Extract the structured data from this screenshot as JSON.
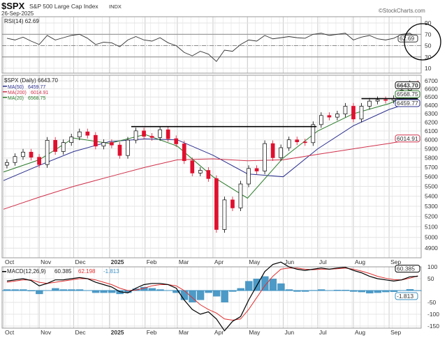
{
  "header": {
    "symbol": "$SPX",
    "name": "S&P 500 Large Cap Index",
    "exchange": "INDX",
    "date": "26-Sep-2025",
    "watermark": "©StockCharts.com"
  },
  "colors": {
    "up": "#000000",
    "down": "#e0102f",
    "ma50": "#2b2f8e",
    "ma200": "#d0304a",
    "ma20": "#2a7a2a",
    "macd": "#000000",
    "signal": "#e03030",
    "histogram": "#3a8fc0",
    "rsi": "#333333"
  },
  "chart_data": [
    {
      "type": "line",
      "title": "RSI(14) 62.69",
      "yticks": [
        90,
        70,
        50,
        30,
        10
      ],
      "ylim": [
        0,
        100
      ],
      "bands": [
        30,
        50,
        70
      ],
      "last_value": "62.69",
      "annotation": "circle around latest RSI value",
      "series": [
        {
          "name": "RSI(14)",
          "values": [
            63,
            60,
            65,
            58,
            52,
            68,
            60,
            64,
            68,
            70,
            63,
            52,
            56,
            55,
            48,
            60,
            66,
            60,
            58,
            64,
            55,
            50,
            38,
            32,
            40,
            35,
            22,
            42,
            40,
            52,
            60,
            58,
            68,
            62,
            64,
            66,
            64,
            63,
            70,
            72,
            68,
            70,
            72,
            60,
            65,
            68,
            62,
            60,
            63,
            70,
            72,
            62.69
          ]
        }
      ]
    },
    {
      "type": "candlestick",
      "title": "$SPX (Daily) 6643.70",
      "scale": "log",
      "ylim": [
        4800,
        6750
      ],
      "yticks": [
        6700,
        6600,
        6500,
        6400,
        6300,
        6200,
        6100,
        6000,
        5900,
        5800,
        5700,
        5600,
        5500,
        5400,
        5300,
        5200,
        5100,
        5000,
        4900
      ],
      "xticks": [
        "Oct",
        "Nov",
        "Dec",
        "2025",
        "Feb",
        "Mar",
        "Apr",
        "May",
        "Jun",
        "Jul",
        "Aug",
        "Sep"
      ],
      "xtick_dates": [
        "2024-10-01",
        "2024-11-01",
        "2024-12-01",
        "2025-01-01",
        "2025-02-01",
        "2025-03-01",
        "2025-04-01",
        "2025-05-01",
        "2025-06-01",
        "2025-07-01",
        "2025-08-01",
        "2025-09-01"
      ],
      "dates": [
        "2024-10-04",
        "2024-10-11",
        "2024-10-18",
        "2024-10-25",
        "2024-11-01",
        "2024-11-08",
        "2024-11-15",
        "2024-11-22",
        "2024-11-29",
        "2024-12-06",
        "2024-12-13",
        "2024-12-20",
        "2024-12-27",
        "2025-01-03",
        "2025-01-10",
        "2025-01-17",
        "2025-01-24",
        "2025-01-31",
        "2025-02-07",
        "2025-02-14",
        "2025-02-21",
        "2025-02-28",
        "2025-03-07",
        "2025-03-14",
        "2025-03-21",
        "2025-03-28",
        "2025-04-04",
        "2025-04-11",
        "2025-04-18",
        "2025-04-25",
        "2025-05-02",
        "2025-05-09",
        "2025-05-16",
        "2025-05-23",
        "2025-05-30",
        "2025-06-06",
        "2025-06-13",
        "2025-06-20",
        "2025-06-27",
        "2025-07-04",
        "2025-07-11",
        "2025-07-18",
        "2025-07-25",
        "2025-08-01",
        "2025-08-08",
        "2025-08-15",
        "2025-08-22",
        "2025-08-29",
        "2025-09-05",
        "2025-09-12",
        "2025-09-19",
        "2025-09-26"
      ],
      "close": [
        5751,
        5815,
        5864,
        5808,
        5729,
        5995,
        5870,
        5969,
        6032,
        6090,
        6051,
        5930,
        5970,
        5942,
        5827,
        5997,
        6101,
        6040,
        6026,
        6114,
        6013,
        5955,
        5770,
        5639,
        5667,
        5581,
        5074,
        5363,
        5283,
        5525,
        5687,
        5660,
        5958,
        5803,
        5912,
        6000,
        5977,
        5968,
        6173,
        6279,
        6260,
        6297,
        6389,
        6238,
        6389,
        6450,
        6467,
        6460,
        6482,
        6584,
        6664,
        6643.7
      ],
      "last_value": "6643.70",
      "moving_averages": [
        {
          "name": "MA(50)",
          "last": "6459.77",
          "color_key": "ma50",
          "dates": [
            "2024-10-01",
            "2024-11-01",
            "2024-12-01",
            "2025-01-01",
            "2025-02-01",
            "2025-03-01",
            "2025-04-01",
            "2025-05-01",
            "2025-06-01",
            "2025-07-01",
            "2025-08-01",
            "2025-09-01",
            "2025-09-26"
          ],
          "values": [
            5560,
            5720,
            5870,
            5980,
            6010,
            6000,
            5830,
            5630,
            5600,
            5900,
            6160,
            6350,
            6459.77
          ]
        },
        {
          "name": "MA(200)",
          "last": "6014.91",
          "color_key": "ma200",
          "dates": [
            "2024-10-01",
            "2024-11-01",
            "2024-12-01",
            "2025-01-01",
            "2025-02-01",
            "2025-03-01",
            "2025-04-01",
            "2025-05-01",
            "2025-06-01",
            "2025-07-01",
            "2025-08-01",
            "2025-09-01",
            "2025-09-26"
          ],
          "values": [
            5270,
            5390,
            5500,
            5600,
            5700,
            5780,
            5790,
            5770,
            5780,
            5840,
            5900,
            5960,
            6014.91
          ]
        },
        {
          "name": "MA(20)",
          "last": "6568.75",
          "color_key": "ma20",
          "dates": [
            "2024-10-01",
            "2024-11-01",
            "2024-12-01",
            "2025-01-01",
            "2025-02-01",
            "2025-03-01",
            "2025-04-01",
            "2025-05-01",
            "2025-06-01",
            "2025-07-01",
            "2025-08-01",
            "2025-09-01",
            "2025-09-26"
          ],
          "values": [
            5650,
            5780,
            6020,
            5960,
            6060,
            5930,
            5600,
            5380,
            5800,
            6100,
            6300,
            6420,
            6568.75
          ]
        }
      ],
      "annotations": [
        {
          "type": "horizontal-line",
          "price": 6150,
          "from": "2025-01-20",
          "to": "2025-06-30"
        },
        {
          "type": "horizontal-line",
          "price": 6480,
          "from": "2025-08-08",
          "to": "2025-09-26"
        }
      ]
    },
    {
      "type": "line+bar",
      "title": "MACD(12,26,9)",
      "labels": {
        "macd": "60.385",
        "signal": "62.198",
        "histogram": "-1.813"
      },
      "yticks": [
        100,
        50,
        -50,
        -100,
        -150
      ],
      "ylim": [
        -175,
        140
      ],
      "series": [
        {
          "name": "MACD",
          "values": [
            40,
            45,
            50,
            42,
            20,
            30,
            45,
            45,
            50,
            55,
            50,
            35,
            25,
            15,
            -5,
            -10,
            10,
            25,
            30,
            30,
            25,
            10,
            -40,
            -80,
            -100,
            -90,
            -120,
            -170,
            -130,
            -110,
            -40,
            20,
            80,
            110,
            120,
            100,
            90,
            85,
            90,
            95,
            90,
            95,
            98,
            85,
            75,
            60,
            50,
            45,
            40,
            45,
            58,
            60.385
          ]
        },
        {
          "name": "Signal",
          "values": [
            35,
            40,
            45,
            45,
            35,
            30,
            35,
            40,
            45,
            50,
            50,
            45,
            35,
            25,
            10,
            0,
            2,
            10,
            20,
            25,
            25,
            20,
            0,
            -30,
            -60,
            -80,
            -95,
            -120,
            -125,
            -120,
            -80,
            -30,
            20,
            60,
            90,
            95,
            95,
            90,
            88,
            90,
            90,
            92,
            95,
            90,
            82,
            72,
            60,
            52,
            46,
            45,
            52,
            62.198
          ]
        }
      ]
    }
  ]
}
